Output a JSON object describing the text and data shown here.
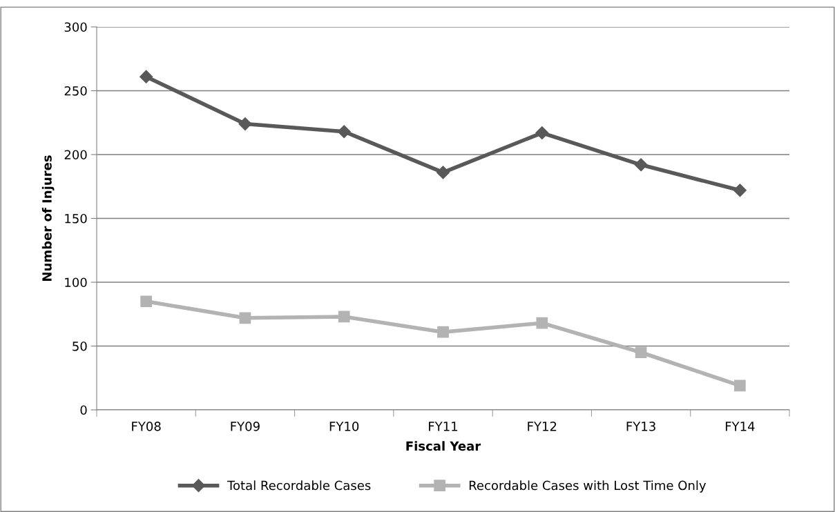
{
  "chart_data": {
    "type": "line",
    "xlabel": "Fiscal Year",
    "ylabel": "Number of Injures",
    "categories": [
      "FY08",
      "FY09",
      "FY10",
      "FY11",
      "FY12",
      "FY13",
      "FY14"
    ],
    "series": [
      {
        "name": "Total Recordable Cases",
        "color": "#595959",
        "marker": "diamond",
        "values": [
          261,
          224,
          218,
          186,
          217,
          192,
          172
        ]
      },
      {
        "name": "Recordable Cases with Lost Time Only",
        "color": "#b3b3b3",
        "marker": "square",
        "values": [
          85,
          72,
          73,
          61,
          68,
          45,
          19
        ]
      }
    ],
    "ylim": [
      0,
      300
    ],
    "yticks": [
      0,
      50,
      100,
      150,
      200,
      250,
      300
    ],
    "grid": "y",
    "legend": "bottom",
    "line_style": "solid"
  }
}
